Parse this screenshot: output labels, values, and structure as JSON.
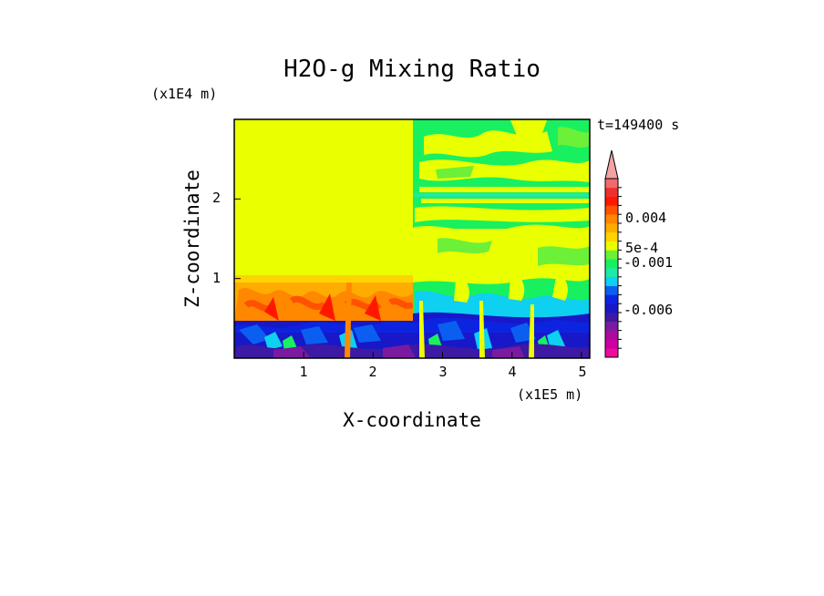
{
  "chart_data": {
    "type": "heatmap",
    "title": "H2O-g Mixing Ratio",
    "xlabel": "X-coordinate",
    "ylabel": "Z-coordinate",
    "x_unit": "(x1E5 m)",
    "y_unit": "(x1E4 m)",
    "time_label": "t=149400 s",
    "x_ticks": [
      "1",
      "2",
      "3",
      "4",
      "5"
    ],
    "y_ticks": [
      "1",
      "2"
    ],
    "xlim": [
      0,
      5.12
    ],
    "ylim": [
      0,
      3
    ],
    "colorbar": {
      "labels": [
        "0.004",
        "5e-4",
        "-0.001",
        "-0.006"
      ],
      "extend": "max",
      "colors": [
        "#f00a9c",
        "#cc00a3",
        "#ab0a9b",
        "#7a1aa0",
        "#3c1aa3",
        "#1818c8",
        "#0c24e0",
        "#0b5ff0",
        "#0ed0f0",
        "#1fe8a8",
        "#18f060",
        "#6cf038",
        "#eaff00",
        "#ffd400",
        "#ffac00",
        "#ff8800",
        "#ff5200",
        "#ff1800",
        "#ee3030",
        "#f26a6a",
        "#f2a2a2"
      ]
    }
  }
}
